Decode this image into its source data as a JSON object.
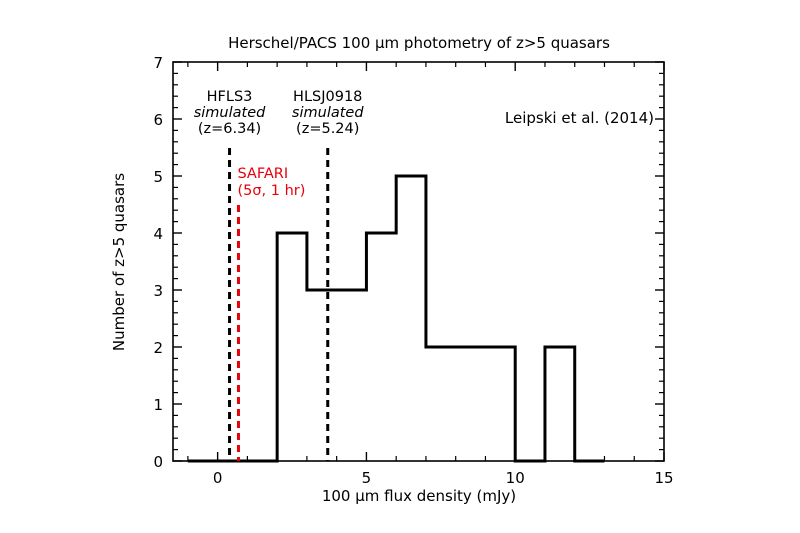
{
  "chart_data": {
    "type": "histogram",
    "title": "Herschel/PACS 100 μm photometry of z>5 quasars",
    "xlabel": "100 μm flux density (mJy)",
    "ylabel": "Number of z>5 quasars",
    "xlim": [
      -1.5,
      15
    ],
    "ylim": [
      0,
      7
    ],
    "xticks": [
      0,
      5,
      10,
      15
    ],
    "yticks": [
      0,
      1,
      2,
      3,
      4,
      5,
      6,
      7
    ],
    "bin_edges": [
      -1,
      0,
      1,
      2,
      3,
      4,
      5,
      6,
      7,
      8,
      9,
      10,
      11,
      12,
      13
    ],
    "counts": [
      0,
      0,
      0,
      4,
      3,
      3,
      4,
      5,
      2,
      2,
      2,
      0,
      2,
      0
    ],
    "citation": "Leipski et al. (2014)",
    "vlines": [
      {
        "x": 0.4,
        "color": "#000000",
        "lines": [
          "HFLS3",
          "simulated",
          "(z=6.34)"
        ]
      },
      {
        "x": 0.7,
        "color": "#e8000b",
        "lines": [
          "SAFARI",
          "(5σ, 1 hr)"
        ]
      },
      {
        "x": 3.7,
        "color": "#000000",
        "lines": [
          "HLSJ0918",
          "simulated",
          "(z=5.24)"
        ]
      }
    ],
    "grid": false,
    "legend": "none"
  }
}
